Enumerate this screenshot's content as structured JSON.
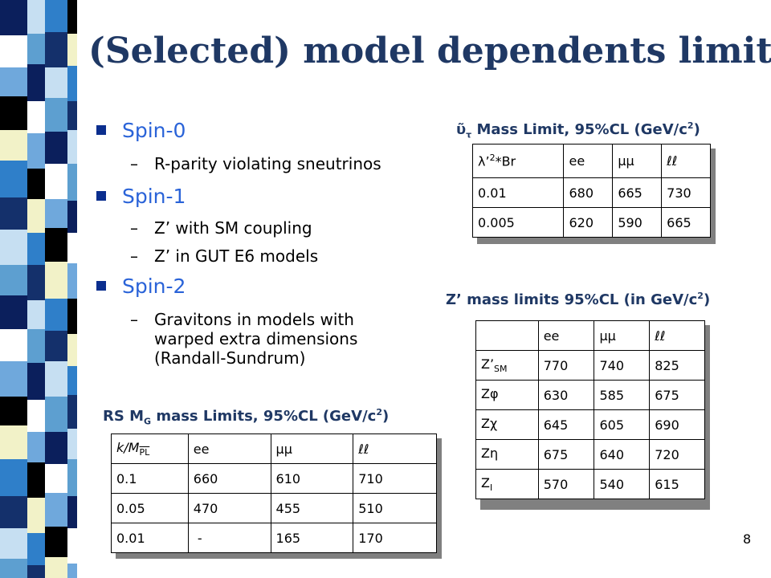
{
  "title": "(Selected) model dependents limits",
  "bullets": {
    "spin0": {
      "label": "Spin-0",
      "subs": [
        "R-parity violating sneutrinos"
      ]
    },
    "spin1": {
      "label": "Spin-1",
      "subs": [
        "Z’ with SM coupling",
        "Z’ in GUT E6 models"
      ]
    },
    "spin2": {
      "label": "Spin-2",
      "sub_lines": [
        "Gravitons in models with",
        "warped extra dimensions",
        "(Randall-Sundrum)"
      ]
    }
  },
  "sneutrino_table": {
    "heading_symbol": "υ̃",
    "heading_sub": "τ",
    "heading_text": " Mass Limit, 95%CL (GeV/c",
    "heading_sup": "2",
    "heading_close": ")",
    "header": {
      "c0_sym": "λ’",
      "c0_sup": "2",
      "c0_rest": "*Br",
      "c1": "ee",
      "c2": "μμ",
      "c3": "ℓℓ"
    },
    "rows": [
      [
        "0.01",
        "680",
        "665",
        "730"
      ],
      [
        "0.005",
        "620",
        "590",
        "665"
      ]
    ]
  },
  "zprime_table": {
    "heading_text": "Z’ mass limits 95%CL (in GeV/c",
    "heading_sup": "2",
    "heading_close": ")",
    "header": {
      "c0": "",
      "c1": "ee",
      "c2": "μμ",
      "c3": "ℓℓ"
    },
    "rows": [
      {
        "label": "Z’",
        "label_sub": "SM",
        "values": [
          "770",
          "740",
          "825"
        ]
      },
      {
        "label": "Zφ",
        "label_sub": "",
        "values": [
          "630",
          "585",
          "675"
        ]
      },
      {
        "label": "Zχ",
        "label_sub": "",
        "values": [
          "645",
          "605",
          "690"
        ]
      },
      {
        "label": "Zη",
        "label_sub": "",
        "values": [
          "675",
          "640",
          "720"
        ]
      },
      {
        "label": "Z",
        "label_sub": "I",
        "values": [
          "570",
          "540",
          "615"
        ]
      }
    ]
  },
  "rs_table": {
    "heading_pre": "RS M",
    "heading_sub": "G",
    "heading_text": " mass Limits, 95%CL (GeV/c",
    "heading_sup": "2",
    "heading_close": ")",
    "header": {
      "c0_main": "k/M",
      "c0_sub": "PL",
      "c1": "ee",
      "c2": "μμ",
      "c3": "ℓℓ"
    },
    "rows": [
      [
        "0.1",
        "660",
        "610",
        "710"
      ],
      [
        "0.05",
        "470",
        "455",
        "510"
      ],
      [
        "0.01",
        " -",
        "165",
        "170"
      ]
    ]
  },
  "page_number": "8",
  "colors": {
    "title": "#1f3864",
    "bullet_text": "#2a63d8",
    "bullet_square": "#0b2e8e"
  }
}
